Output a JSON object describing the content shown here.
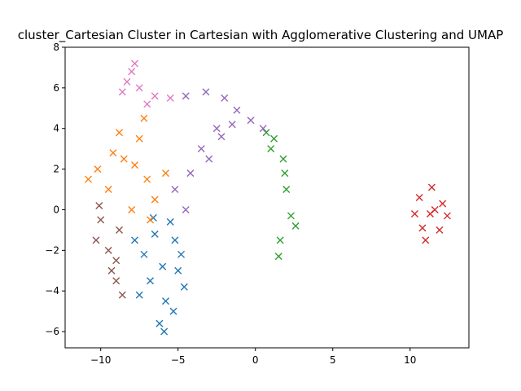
{
  "chart_data": {
    "type": "scatter",
    "title": "cluster_Cartesian Cluster in Cartesian with Agglomerative Clustering and UMAP",
    "xlabel": "",
    "ylabel": "",
    "xlim": [
      -12.3,
      13.8
    ],
    "ylim": [
      -6.8,
      8.0
    ],
    "xticks": [
      -10,
      -5,
      0,
      5,
      10
    ],
    "yticks": [
      -6,
      -4,
      -2,
      0,
      2,
      4,
      6,
      8
    ],
    "xtick_labels": [
      "−10",
      "−5",
      "0",
      "5",
      "10"
    ],
    "ytick_labels": [
      "−6",
      "−4",
      "−2",
      "0",
      "2",
      "4",
      "6",
      "8"
    ],
    "marker": "x",
    "grid": false,
    "legend": "none",
    "series": [
      {
        "color": "#1f77b4",
        "points": [
          [
            -6.0,
            -2.8
          ],
          [
            -6.5,
            -1.2
          ],
          [
            -5.2,
            -1.5
          ],
          [
            -6.8,
            -3.5
          ],
          [
            -5.8,
            -4.5
          ],
          [
            -5.0,
            -3.0
          ],
          [
            -7.2,
            -2.2
          ],
          [
            -6.2,
            -5.6
          ],
          [
            -4.8,
            -2.2
          ],
          [
            -5.5,
            -0.6
          ],
          [
            -7.5,
            -4.2
          ],
          [
            -6.6,
            -0.4
          ],
          [
            -4.6,
            -3.8
          ],
          [
            -5.9,
            -6.0
          ],
          [
            -7.8,
            -1.5
          ],
          [
            -5.3,
            -5.0
          ]
        ]
      },
      {
        "color": "#ff7f0e",
        "points": [
          [
            -7.0,
            1.5
          ],
          [
            -8.5,
            2.5
          ],
          [
            -10.2,
            2.0
          ],
          [
            -7.5,
            3.5
          ],
          [
            -6.5,
            0.5
          ],
          [
            -9.5,
            1.0
          ],
          [
            -8.0,
            0.0
          ],
          [
            -7.2,
            4.5
          ],
          [
            -5.8,
            1.8
          ],
          [
            -10.8,
            1.5
          ],
          [
            -8.8,
            3.8
          ],
          [
            -6.8,
            -0.5
          ],
          [
            -9.2,
            2.8
          ],
          [
            -7.8,
            2.2
          ]
        ]
      },
      {
        "color": "#2ca02c",
        "points": [
          [
            1.2,
            3.5
          ],
          [
            1.8,
            2.5
          ],
          [
            2.0,
            1.0
          ],
          [
            2.3,
            -0.3
          ],
          [
            1.6,
            -1.5
          ],
          [
            1.0,
            3.0
          ],
          [
            1.5,
            -2.3
          ],
          [
            2.6,
            -0.8
          ],
          [
            0.7,
            3.8
          ],
          [
            1.9,
            1.8
          ]
        ]
      },
      {
        "color": "#d62728",
        "points": [
          [
            11.3,
            -0.2
          ],
          [
            10.6,
            0.6
          ],
          [
            12.1,
            0.3
          ],
          [
            10.8,
            -0.9
          ],
          [
            11.9,
            -1.0
          ],
          [
            11.4,
            1.1
          ],
          [
            10.3,
            -0.2
          ],
          [
            12.4,
            -0.3
          ],
          [
            11.0,
            -1.5
          ],
          [
            11.6,
            0.0
          ]
        ]
      },
      {
        "color": "#9467bd",
        "points": [
          [
            -4.5,
            5.6
          ],
          [
            -3.2,
            5.8
          ],
          [
            -2.0,
            5.5
          ],
          [
            -1.2,
            4.9
          ],
          [
            -2.5,
            4.0
          ],
          [
            -3.5,
            3.0
          ],
          [
            -4.2,
            1.8
          ],
          [
            -5.2,
            1.0
          ],
          [
            -1.5,
            4.2
          ],
          [
            -0.3,
            4.4
          ],
          [
            0.5,
            4.0
          ],
          [
            -3.0,
            2.5
          ],
          [
            -4.5,
            0.0
          ],
          [
            -2.2,
            3.6
          ]
        ]
      },
      {
        "color": "#8c564b",
        "points": [
          [
            -10.0,
            -0.5
          ],
          [
            -9.5,
            -2.0
          ],
          [
            -9.0,
            -3.5
          ],
          [
            -10.3,
            -1.5
          ],
          [
            -8.8,
            -1.0
          ],
          [
            -9.3,
            -3.0
          ],
          [
            -8.6,
            -4.2
          ],
          [
            -10.1,
            0.2
          ],
          [
            -9.0,
            -2.5
          ]
        ]
      },
      {
        "color": "#e377c2",
        "points": [
          [
            -8.0,
            6.8
          ],
          [
            -7.5,
            6.0
          ],
          [
            -6.5,
            5.6
          ],
          [
            -8.6,
            5.8
          ],
          [
            -7.8,
            7.2
          ],
          [
            -5.5,
            5.5
          ],
          [
            -7.0,
            5.2
          ],
          [
            -8.3,
            6.3
          ]
        ]
      }
    ]
  }
}
